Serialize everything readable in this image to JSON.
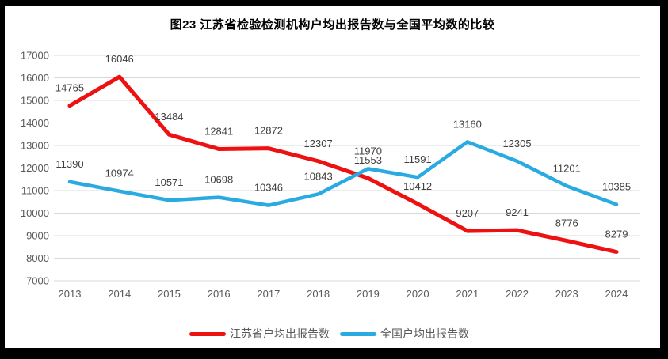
{
  "frame": {
    "background": "#000000"
  },
  "chart_data": {
    "type": "line",
    "title": "图23  江苏省检验检测机构户均出报告数与全国平均数的比较",
    "categories": [
      "2013",
      "2014",
      "2015",
      "2016",
      "2017",
      "2018",
      "2019",
      "2020",
      "2021",
      "2022",
      "2023",
      "2024"
    ],
    "series": [
      {
        "name": "江苏省户均出报告数",
        "color": "#ee1111",
        "values": [
          14765,
          16046,
          13484,
          12841,
          12872,
          12307,
          11553,
          10412,
          9207,
          9241,
          8776,
          8279
        ]
      },
      {
        "name": "全国户均出报告数",
        "color": "#29abe2",
        "values": [
          11390,
          10974,
          10571,
          10698,
          10346,
          10843,
          11970,
          11591,
          13160,
          12305,
          11201,
          10385
        ]
      }
    ],
    "xlabel": "",
    "ylabel": "",
    "ylim": [
      7000,
      17000
    ],
    "yticks": [
      7000,
      8000,
      9000,
      10000,
      11000,
      12000,
      13000,
      14000,
      15000,
      16000,
      17000
    ],
    "grid": true,
    "data_labels": true,
    "legend_position": "bottom",
    "colors": {
      "grid": "#d9d9d9",
      "tick_label": "#595959",
      "data_label": "#404040",
      "title": "#000000",
      "background": "#ffffff"
    }
  }
}
